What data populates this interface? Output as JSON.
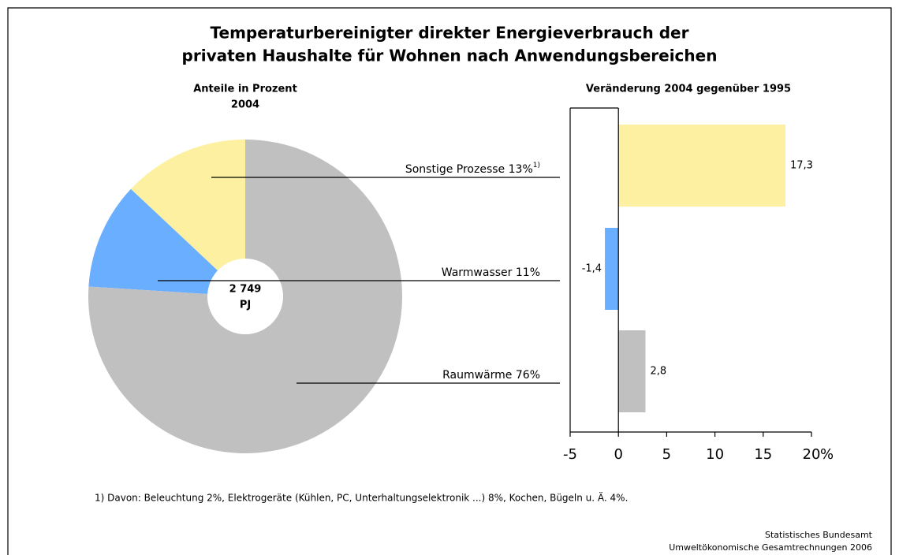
{
  "title": [
    "Temperaturbereinigter direkter Energieverbrauch der",
    "privaten Haushalte für Wohnen nach Anwendungsbereichen"
  ],
  "footnote": "1) Davon: Beleuchtung 2%, Elektrogeräte (Kühlen, PC, Unterhaltungselektronik ...) 8%, Kochen, Bügeln u. Ä. 4%.",
  "source": [
    "Statistisches Bundesamt",
    "Umweltökonomische Gesamtrechnungen 2006"
  ],
  "chart_data": [
    {
      "type": "pie",
      "subtitle": [
        "Anteile in Prozent",
        "2004"
      ],
      "categories": [
        "Sonstige Prozesse",
        "Warmwasser",
        "Raumwärme"
      ],
      "values": [
        13,
        11,
        76
      ],
      "value_labels": [
        "13%",
        "11%",
        "76%"
      ],
      "footnote_marks": [
        "1)",
        null,
        null
      ],
      "colors": [
        "#fdf0a0",
        "#6aaeff",
        "#c0c0c0"
      ],
      "center_label": {
        "value": 2749,
        "label": "2 749"
      },
      "center_unit": "PJ"
    },
    {
      "type": "hbar",
      "title": "Veränderung 2004 gegenüber 1995",
      "values": [
        17.3,
        -1.4,
        2.8
      ],
      "value_labels": [
        "17,3",
        "-1,4",
        "2,8"
      ],
      "colors": [
        "#fdf0a0",
        "#6aaeff",
        "#c0c0c0"
      ],
      "xlim": [
        -5,
        20
      ],
      "xticks": [
        -5,
        0,
        5,
        10,
        15,
        20
      ],
      "x_unit": "%"
    }
  ]
}
